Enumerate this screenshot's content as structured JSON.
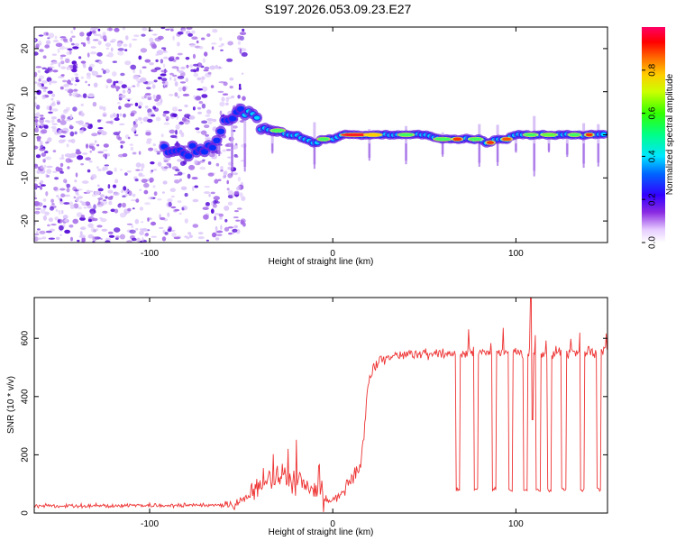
{
  "title": "S197.2026.053.09.23.E27",
  "chart_data": [
    {
      "type": "heatmap",
      "xlabel": "Height of straight line (km)",
      "ylabel": "Frequency (Hz)",
      "xlim": [
        -163,
        150
      ],
      "ylim": [
        -25,
        25
      ],
      "xticks": [
        -100,
        0,
        100
      ],
      "yticks": [
        -20,
        -10,
        0,
        10,
        20
      ],
      "ridge": [
        [
          -90,
          -3
        ],
        [
          -80,
          -4
        ],
        [
          -70,
          -3
        ],
        [
          -65,
          -2
        ],
        [
          -60,
          1
        ],
        [
          -55,
          4
        ],
        [
          -50,
          6
        ],
        [
          -45,
          5
        ],
        [
          -40,
          3
        ],
        [
          -35,
          2
        ],
        [
          -30,
          1
        ],
        [
          -25,
          0
        ],
        [
          -20,
          0
        ],
        [
          -15,
          -1
        ],
        [
          -10,
          -2
        ],
        [
          -5,
          -1
        ],
        [
          0,
          -1
        ],
        [
          5,
          0
        ],
        [
          10,
          0
        ],
        [
          15,
          0
        ],
        [
          20,
          0
        ],
        [
          30,
          0
        ],
        [
          40,
          0
        ],
        [
          50,
          0
        ],
        [
          60,
          -1
        ],
        [
          70,
          -1
        ],
        [
          80,
          -1
        ],
        [
          85,
          -2
        ],
        [
          90,
          -1
        ],
        [
          95,
          -1
        ],
        [
          100,
          0
        ],
        [
          110,
          0
        ],
        [
          120,
          0
        ],
        [
          130,
          0
        ],
        [
          140,
          0
        ],
        [
          148,
          0
        ]
      ],
      "colorbar": {
        "label": "Normalized spectral amplitude",
        "ticks": [
          "0.0",
          "0.2",
          "0.4",
          "0.6",
          "0.8"
        ],
        "range": [
          0,
          1
        ]
      }
    },
    {
      "type": "line",
      "xlabel": "Height of straight line (km)",
      "ylabel": "SNR (10 * v/v)",
      "xlim": [
        -163,
        150
      ],
      "ylim": [
        0,
        740
      ],
      "xticks": [
        -100,
        0,
        100
      ],
      "yticks": [
        0,
        200,
        400,
        600
      ],
      "color": "#ee3333",
      "profile": [
        [
          -163,
          25
        ],
        [
          -100,
          25
        ],
        [
          -60,
          28
        ],
        [
          -50,
          40
        ],
        [
          -45,
          60
        ],
        [
          -40,
          90
        ],
        [
          -35,
          110
        ],
        [
          -30,
          120
        ],
        [
          -25,
          115
        ],
        [
          -20,
          110
        ],
        [
          -15,
          100
        ],
        [
          -10,
          80
        ],
        [
          -5,
          40
        ],
        [
          0,
          50
        ],
        [
          5,
          70
        ],
        [
          10,
          110
        ],
        [
          15,
          160
        ],
        [
          17,
          260
        ],
        [
          19,
          420
        ],
        [
          21,
          480
        ],
        [
          25,
          520
        ],
        [
          35,
          540
        ],
        [
          50,
          550
        ],
        [
          70,
          550
        ],
        [
          100,
          550
        ],
        [
          150,
          550
        ]
      ],
      "dropouts": [
        68,
        78,
        88,
        97,
        105,
        112,
        118,
        126,
        136,
        145
      ],
      "dropout_value": 80
    }
  ]
}
